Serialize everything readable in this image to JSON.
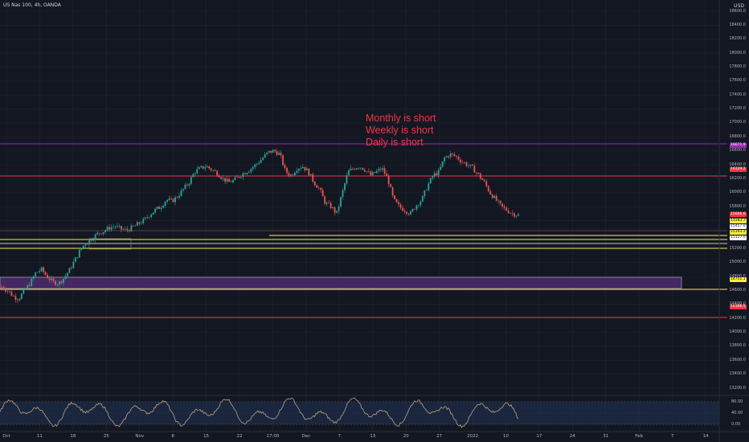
{
  "header": {
    "symbol": "US Nas 100, 4h, OANDA",
    "currency": "USD"
  },
  "annotation": {
    "lines": [
      "Monthly is short",
      "Weekly is short",
      "Daily is short"
    ],
    "color": "#f23645"
  },
  "price_axis": {
    "ticks": [
      "18600.0",
      "18400.0",
      "18200.0",
      "18000.0",
      "17800.0",
      "17600.0",
      "17400.0",
      "17200.0",
      "17000.0",
      "16800.0",
      "16600.0",
      "16400.0",
      "16200.0",
      "16000.0",
      "15800.0",
      "15600.0",
      "15400.0",
      "15200.0",
      "15000.0",
      "14800.0",
      "14600.0",
      "14400.0",
      "14200.0",
      "14000.0",
      "13800.0",
      "13600.0",
      "13400.0",
      "13200.0"
    ],
    "labels": [
      {
        "text": "16671.9",
        "price": 16672,
        "bg": "#9c27b0",
        "fg": "#ffffff"
      },
      {
        "text": "16329.2",
        "price": 16330,
        "bg": "#f23645",
        "fg": "#ffffff"
      },
      {
        "text": "15686.6",
        "price": 15686,
        "bg": "#f23645",
        "fg": "#ffffff"
      },
      {
        "text": "15583.7",
        "price": 15590,
        "bg": "#ffeb3b",
        "fg": "#000000"
      },
      {
        "text": "15457.0",
        "price": 15510,
        "bg": "#ffffff",
        "fg": "#000000"
      },
      {
        "text": "15193.2",
        "price": 15430,
        "bg": "#ffeb3b",
        "fg": "#000000"
      },
      {
        "text": "15127.0",
        "price": 15350,
        "bg": "#ffffff",
        "fg": "#000000"
      },
      {
        "text": "14751.1",
        "price": 14751,
        "bg": "#ffeb3b",
        "fg": "#000000"
      },
      {
        "text": "14366.5",
        "price": 14366,
        "bg": "#f23645",
        "fg": "#ffffff"
      }
    ]
  },
  "oscillator": {
    "ticks": [
      "80.00",
      "40.00",
      "0.00"
    ]
  },
  "time_axis": {
    "labels": [
      "Oct",
      "11",
      "18",
      "25",
      "Nov",
      "8",
      "15",
      "22",
      "17:00",
      "Dec",
      "7",
      "13",
      "20",
      "27",
      "2022",
      "10",
      "17",
      "24",
      "31",
      "Feb",
      "7",
      "14"
    ]
  },
  "colors": {
    "background": "#131722",
    "up": "#26a69a",
    "down": "#ef5350",
    "grid": "#1e222d",
    "purple_line": "#9c27b0",
    "red_line": "#f23645",
    "yellow_line": "#ffeb3b",
    "zone_fill": "#4a2a6a",
    "osc_band": "#1e2d4a",
    "osc_line": "#c0a080"
  },
  "chart_data": {
    "type": "candlestick",
    "instrument": "US Nas 100",
    "timeframe": "4h",
    "ylim": [
      13200,
      18700
    ],
    "close_path": [
      14650,
      14600,
      14520,
      14480,
      14600,
      14700,
      14850,
      14900,
      14800,
      14720,
      14700,
      14780,
      14900,
      15050,
      15200,
      15300,
      15350,
      15420,
      15450,
      15500,
      15520,
      15480,
      15460,
      15500,
      15550,
      15600,
      15680,
      15750,
      15800,
      15900,
      15880,
      15950,
      16050,
      16150,
      16300,
      16350,
      16380,
      16330,
      16280,
      16200,
      16150,
      16180,
      16250,
      16300,
      16350,
      16420,
      16500,
      16580,
      16600,
      16550,
      16300,
      16250,
      16350,
      16380,
      16300,
      16150,
      16050,
      15850,
      15800,
      15700,
      16000,
      16300,
      16350,
      16380,
      16330,
      16250,
      16300,
      16350,
      16200,
      15900,
      15800,
      15750,
      15700,
      15820,
      15900,
      16100,
      16250,
      16300,
      16500,
      16550,
      16520,
      16450,
      16400,
      16350,
      16250,
      16150,
      16000,
      15900,
      15800,
      15750,
      15700,
      15680
    ]
  }
}
